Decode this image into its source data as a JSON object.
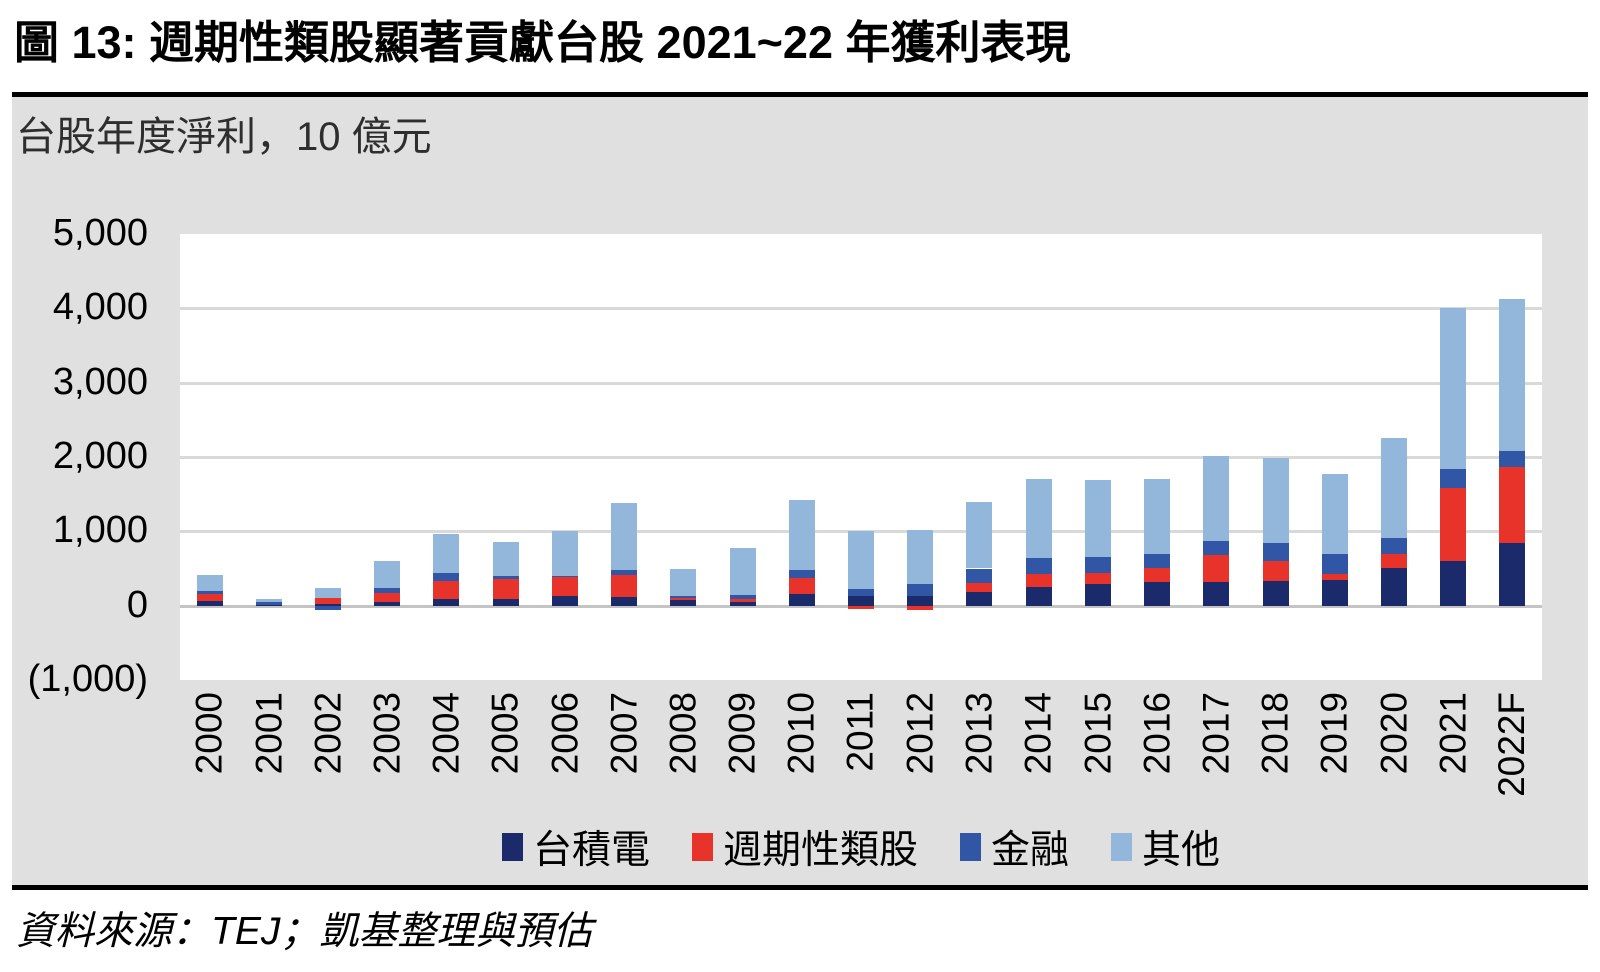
{
  "figure": {
    "title": "圖 13: 週期性類股顯著貢獻台股 2021~22 年獲利表現",
    "subtitle": "台股年度淨利，10 億元",
    "source": "資料來源：TEJ；凱基整理與預估"
  },
  "chart_data": {
    "type": "bar",
    "stacked": true,
    "title": "圖 13: 週期性類股顯著貢獻台股 2021~22 年獲利表現",
    "unit_note": "台股年度淨利，10 億元",
    "xlabel": "",
    "ylabel": "",
    "ylim": [
      -1000,
      5000
    ],
    "grid": true,
    "legend_position": "bottom",
    "yticks": [
      {
        "value": 5000,
        "label": "5,000"
      },
      {
        "value": 4000,
        "label": "4,000"
      },
      {
        "value": 3000,
        "label": "3,000"
      },
      {
        "value": 2000,
        "label": "2,000"
      },
      {
        "value": 1000,
        "label": "1,000"
      },
      {
        "value": 0,
        "label": "0"
      },
      {
        "value": -1000,
        "label": "(1,000)"
      }
    ],
    "categories": [
      "2000",
      "2001",
      "2002",
      "2003",
      "2004",
      "2005",
      "2006",
      "2007",
      "2008",
      "2009",
      "2010",
      "2011",
      "2012",
      "2013",
      "2014",
      "2015",
      "2016",
      "2017",
      "2018",
      "2019",
      "2020",
      "2021",
      "2022F"
    ],
    "series": [
      {
        "name": "台積電",
        "color": "#1b2a6b",
        "values": [
          65,
          15,
          20,
          45,
          90,
          95,
          125,
          110,
          70,
          55,
          160,
          125,
          130,
          185,
          250,
          290,
          320,
          315,
          330,
          340,
          505,
          595,
          840
        ]
      },
      {
        "name": "週期性類股",
        "color": "#e8332a",
        "values": [
          95,
          0,
          80,
          130,
          245,
          265,
          255,
          300,
          35,
          40,
          215,
          -45,
          -60,
          125,
          180,
          145,
          190,
          360,
          270,
          90,
          195,
          990,
          1030
        ]
      },
      {
        "name": "金融",
        "color": "#3156a5",
        "values": [
          40,
          35,
          -60,
          65,
          110,
          40,
          20,
          65,
          25,
          45,
          100,
          105,
          165,
          190,
          215,
          225,
          190,
          200,
          245,
          260,
          210,
          260,
          215
        ]
      },
      {
        "name": "其他",
        "color": "#92b7da",
        "values": [
          210,
          40,
          140,
          365,
          520,
          460,
          610,
          905,
          360,
          640,
          945,
          770,
          725,
          890,
          1060,
          1030,
          1010,
          1135,
          1145,
          1085,
          1340,
          2155,
          2040
        ]
      }
    ]
  }
}
